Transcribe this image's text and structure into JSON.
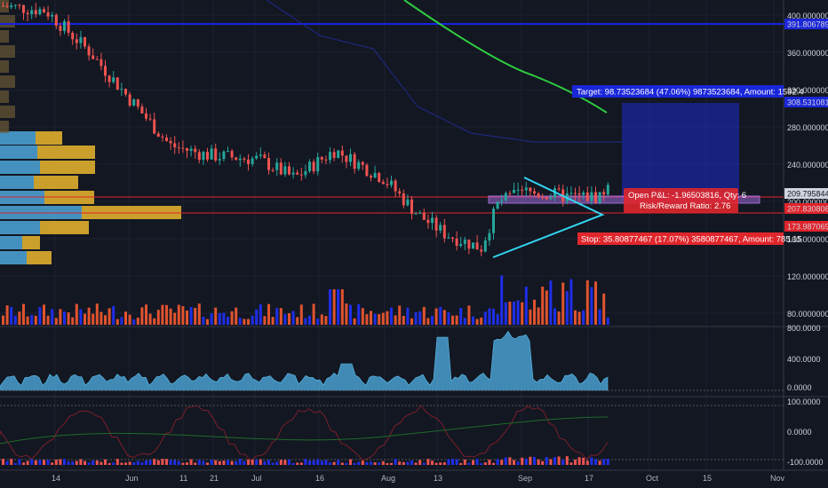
{
  "colors": {
    "bg": "#131722",
    "grid": "#1e2230",
    "up": "#26a69a",
    "down": "#ef5350",
    "ma": "#2ecc40",
    "blue_line": "#1722e6",
    "red_line": "#e0232b",
    "triangle": "#33d6f2",
    "purple": "#9c6ad6",
    "target": "#1b2ccc",
    "stop": "#e0262c",
    "area": "#4a9fd0",
    "vol_up": "#1f2ee8",
    "vol_down": "#e0532f"
  },
  "price_axis": {
    "ticks": [
      "400.00000000",
      "360.00000000",
      "320.00000000",
      "280.00000000",
      "240.00000000",
      "200.00000000",
      "160.00000000",
      "120.00000000",
      "80.00000000"
    ],
    "labels": {
      "blue_line": "391.80678959",
      "target": "308.53108110",
      "current": "209.79584426",
      "red_line": "207.83080610",
      "stop": "173.98706959"
    }
  },
  "indicator1_axis": [
    "800.0000",
    "400.0000",
    "0.0000"
  ],
  "indicator2_axis": [
    "100.0000",
    "0.0000",
    "-100.0000"
  ],
  "time_axis": [
    "14",
    "Jun",
    "11",
    "21",
    "Jul",
    "16",
    "Aug",
    "13",
    "Sep",
    "17",
    "Oct",
    "15",
    "Nov"
  ],
  "position": {
    "target_text": "Target: 98.73523684 (47.06%) 9873523684, Amount: 1592.4",
    "stop_text": "Stop: 35.80877467 (17.07%) 3580877467, Amount: 785.15",
    "open_pnl": "Open P&L: -1.96503816, Qty: 6",
    "risk_reward": "Risk/Reward Ratio: 2.76"
  },
  "icons": {
    "volume_profile": "volume-profile-bars"
  }
}
